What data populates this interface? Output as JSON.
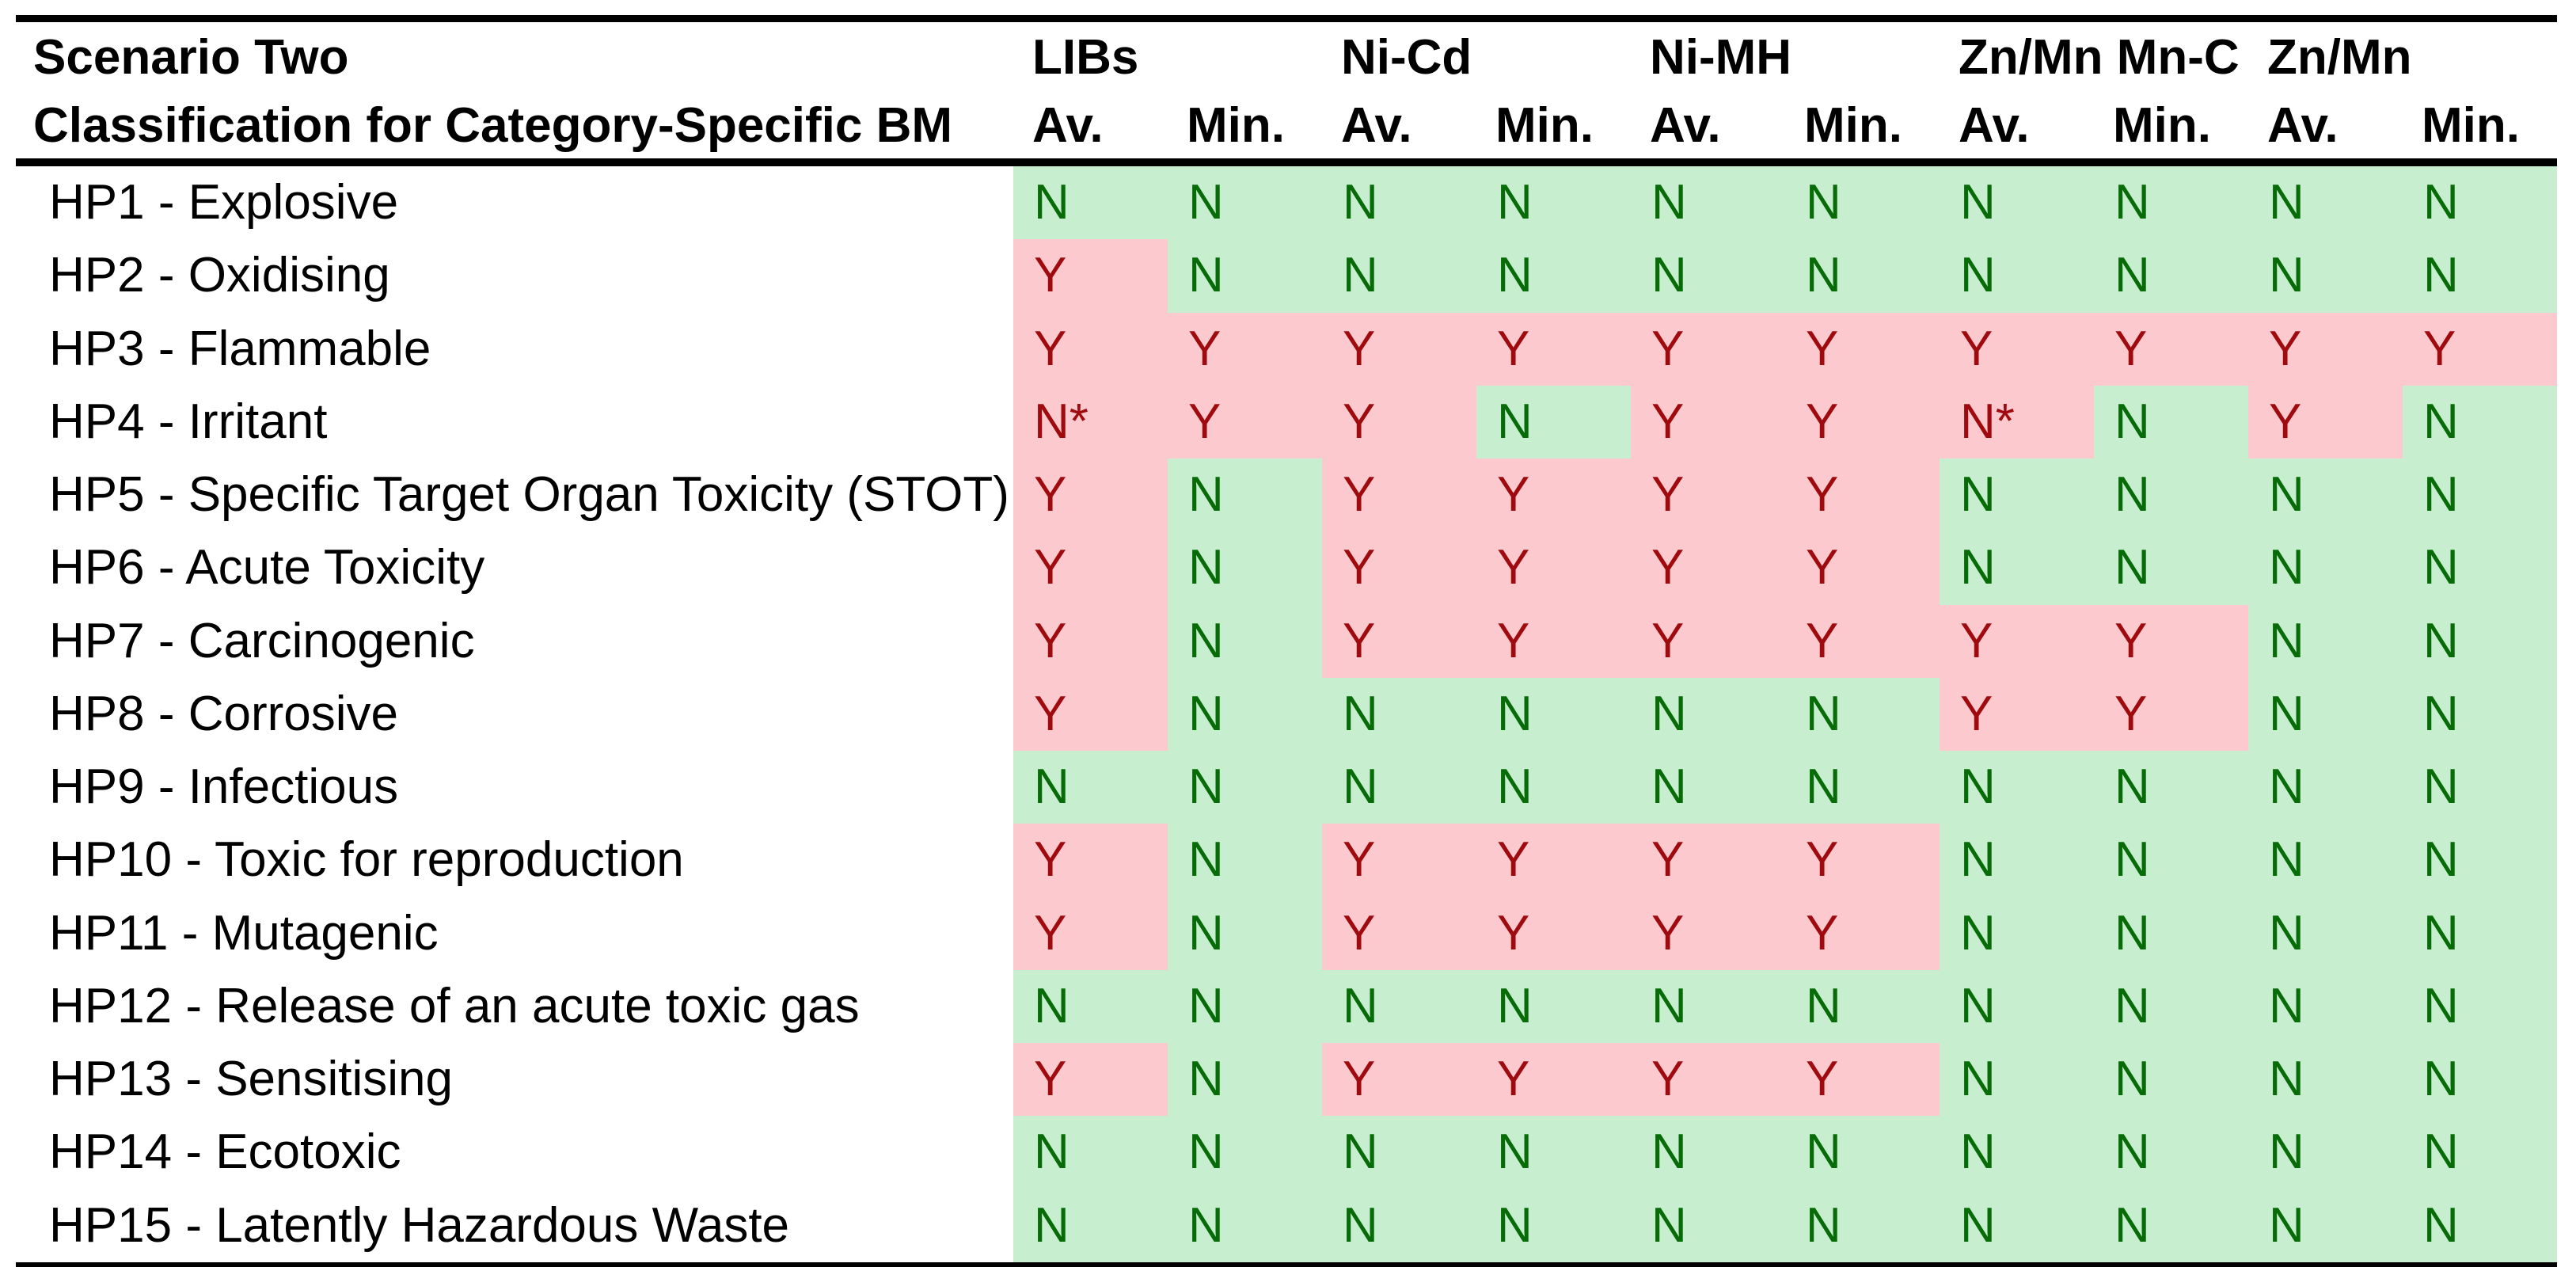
{
  "table": {
    "title_line1": "Scenario Two",
    "title_line2": "Classification for Category-Specific BM",
    "groups": [
      {
        "label": "LIBs"
      },
      {
        "label": "Ni-Cd"
      },
      {
        "label": "Ni-MH"
      },
      {
        "label": "Zn/Mn Mn-C"
      },
      {
        "label": "Zn/Mn"
      }
    ],
    "subheaders": [
      "Av.",
      "Min.",
      "Av.",
      "Min.",
      "Av.",
      "Min.",
      "Av.",
      "Min.",
      "Av.",
      "Min."
    ],
    "rows": [
      {
        "label": "HP1 - Explosive",
        "values": [
          "N",
          "N",
          "N",
          "N",
          "N",
          "N",
          "N",
          "N",
          "N",
          "N"
        ]
      },
      {
        "label": "HP2 - Oxidising",
        "values": [
          "Y",
          "N",
          "N",
          "N",
          "N",
          "N",
          "N",
          "N",
          "N",
          "N"
        ]
      },
      {
        "label": "HP3 - Flammable",
        "values": [
          "Y",
          "Y",
          "Y",
          "Y",
          "Y",
          "Y",
          "Y",
          "Y",
          "Y",
          "Y"
        ]
      },
      {
        "label": "HP4 - Irritant",
        "values": [
          "N*",
          "Y",
          "Y",
          "N",
          "Y",
          "Y",
          "N*",
          "N",
          "Y",
          "N"
        ]
      },
      {
        "label": "HP5 - Specific Target Organ Toxicity (STOT)",
        "values": [
          "Y",
          "N",
          "Y",
          "Y",
          "Y",
          "Y",
          "N",
          "N",
          "N",
          "N"
        ]
      },
      {
        "label": "HP6 - Acute Toxicity",
        "values": [
          "Y",
          "N",
          "Y",
          "Y",
          "Y",
          "Y",
          "N",
          "N",
          "N",
          "N"
        ]
      },
      {
        "label": "HP7 - Carcinogenic",
        "values": [
          "Y",
          "N",
          "Y",
          "Y",
          "Y",
          "Y",
          "Y",
          "Y",
          "N",
          "N"
        ]
      },
      {
        "label": "HP8 - Corrosive",
        "values": [
          "Y",
          "N",
          "N",
          "N",
          "N",
          "N",
          "Y",
          "Y",
          "N",
          "N"
        ]
      },
      {
        "label": "HP9 - Infectious",
        "values": [
          "N",
          "N",
          "N",
          "N",
          "N",
          "N",
          "N",
          "N",
          "N",
          "N"
        ]
      },
      {
        "label": "HP10 - Toxic for reproduction",
        "values": [
          "Y",
          "N",
          "Y",
          "Y",
          "Y",
          "Y",
          "N",
          "N",
          "N",
          "N"
        ]
      },
      {
        "label": "HP11 - Mutagenic",
        "values": [
          "Y",
          "N",
          "Y",
          "Y",
          "Y",
          "Y",
          "N",
          "N",
          "N",
          "N"
        ]
      },
      {
        "label": "HP12 - Release of an acute toxic gas",
        "values": [
          "N",
          "N",
          "N",
          "N",
          "N",
          "N",
          "N",
          "N",
          "N",
          "N"
        ]
      },
      {
        "label": "HP13 - Sensitising",
        "values": [
          "Y",
          "N",
          "Y",
          "Y",
          "Y",
          "Y",
          "N",
          "N",
          "N",
          "N"
        ]
      },
      {
        "label": "HP14 - Ecotoxic",
        "values": [
          "N",
          "N",
          "N",
          "N",
          "N",
          "N",
          "N",
          "N",
          "N",
          "N"
        ]
      },
      {
        "label": "HP15 - Latently Hazardous Waste",
        "values": [
          "N",
          "N",
          "N",
          "N",
          "N",
          "N",
          "N",
          "N",
          "N",
          "N"
        ]
      }
    ],
    "colors": {
      "yes_bg": "#fbc9ce",
      "yes_text": "#9e0a0e",
      "no_bg": "#c7eecf",
      "no_text": "#076b07"
    }
  }
}
